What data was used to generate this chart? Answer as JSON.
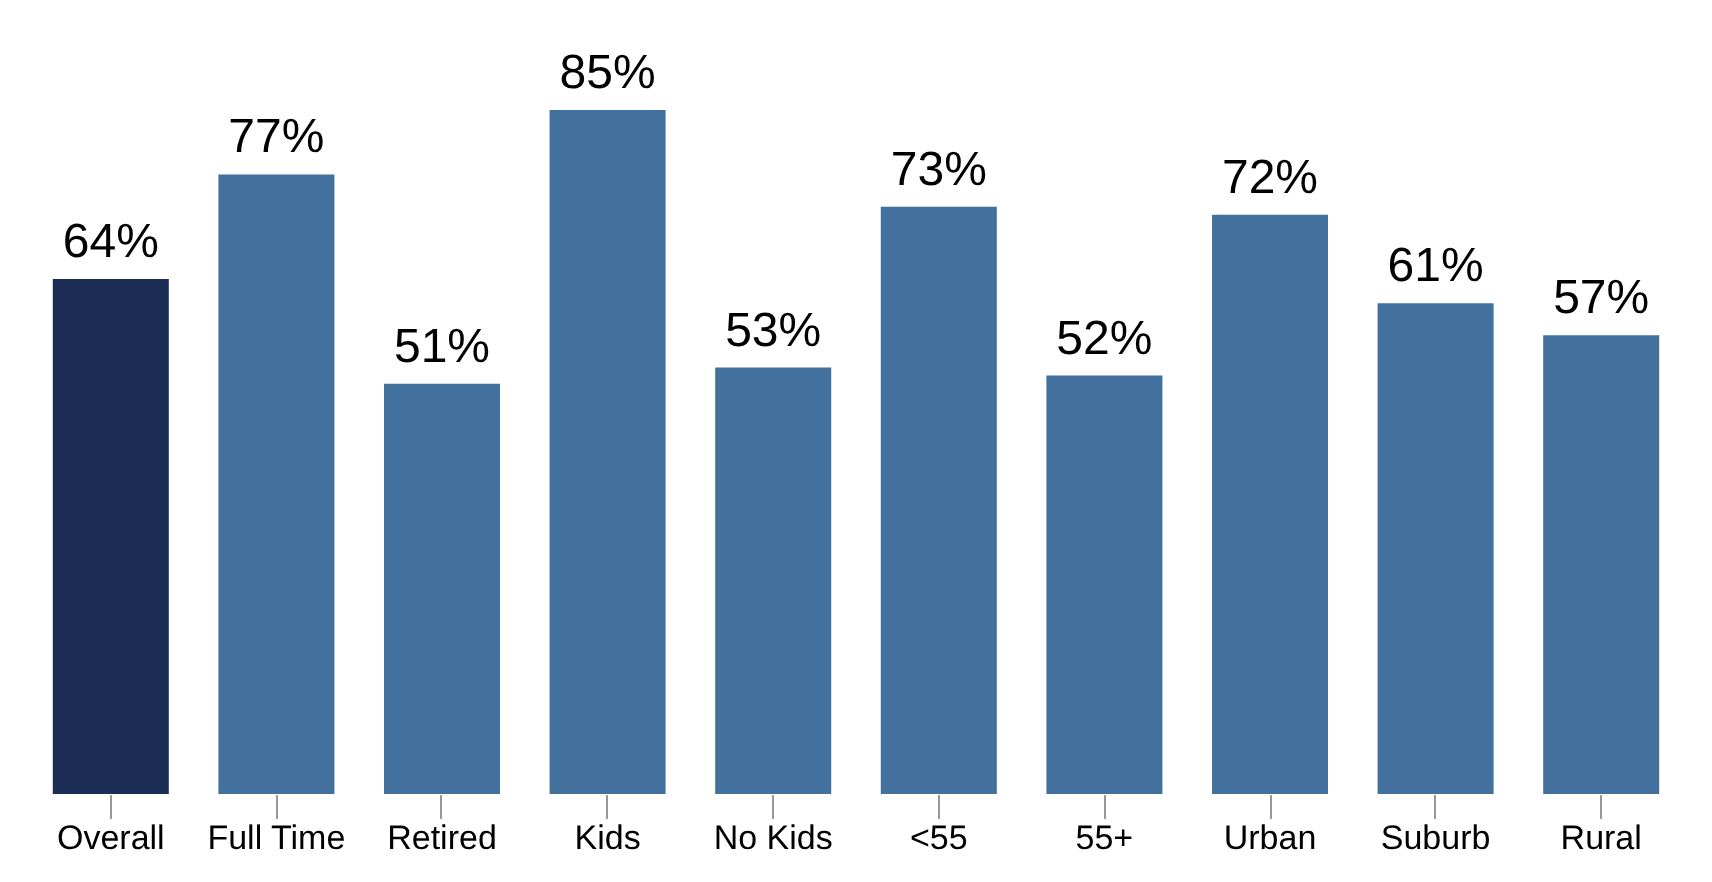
{
  "chart_data": {
    "type": "bar",
    "categories": [
      "Overall",
      "Full Time",
      "Retired",
      "Kids",
      "No Kids",
      "<55",
      "55+",
      "Urban",
      "Suburb",
      "Rural"
    ],
    "values": [
      64,
      77,
      51,
      85,
      53,
      73,
      52,
      72,
      61,
      57
    ],
    "colors": [
      "#1b2d55",
      "#41719c",
      "#41719c",
      "#41719c",
      "#41719c",
      "#41719c",
      "#41719c",
      "#41719c",
      "#41719c",
      "#41719c"
    ],
    "value_labels": [
      "64%",
      "77%",
      "51%",
      "85%",
      "53%",
      "73%",
      "52%",
      "72%",
      "61%",
      "57%"
    ],
    "tick_labels": "x",
    "grid": false
  }
}
